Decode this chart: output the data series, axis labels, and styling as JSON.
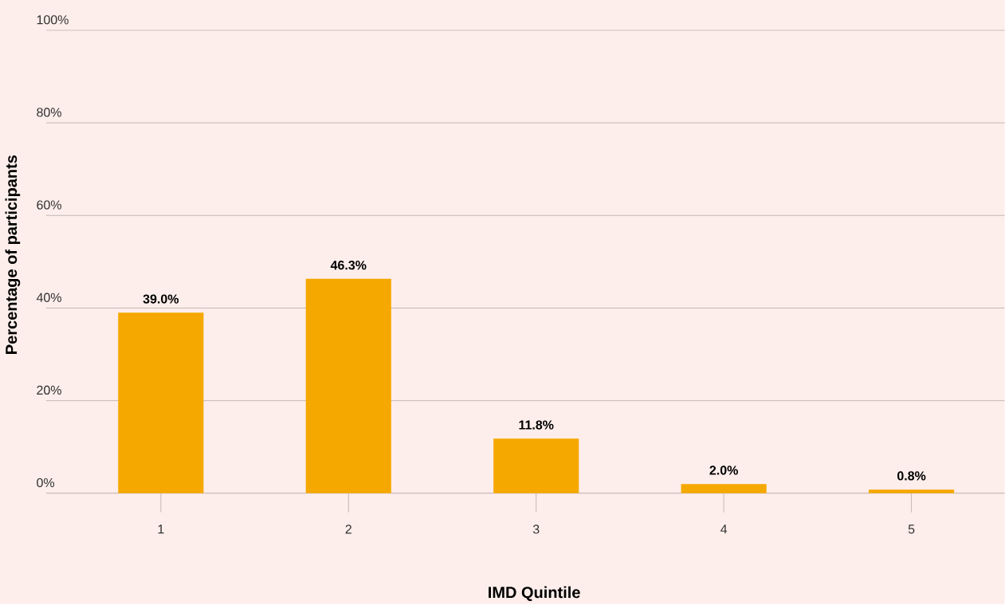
{
  "chart_data": {
    "type": "bar",
    "xlabel": "IMD Quintile",
    "ylabel": "Percentage of participants",
    "categories": [
      "1",
      "2",
      "3",
      "4",
      "5"
    ],
    "values": [
      39.0,
      46.3,
      11.8,
      2.0,
      0.8
    ],
    "value_labels": [
      "39.0%",
      "46.3%",
      "11.8%",
      "2.0%",
      "0.8%"
    ],
    "color": "#f5a800",
    "ylim": [
      0,
      100
    ],
    "yticks": [
      {
        "value": 0,
        "label": "0%"
      },
      {
        "value": 20,
        "label": "20%"
      },
      {
        "value": 40,
        "label": "40%"
      },
      {
        "value": 60,
        "label": "60%"
      },
      {
        "value": 80,
        "label": "80%"
      },
      {
        "value": 100,
        "label": "100%"
      }
    ],
    "grid": "y"
  }
}
